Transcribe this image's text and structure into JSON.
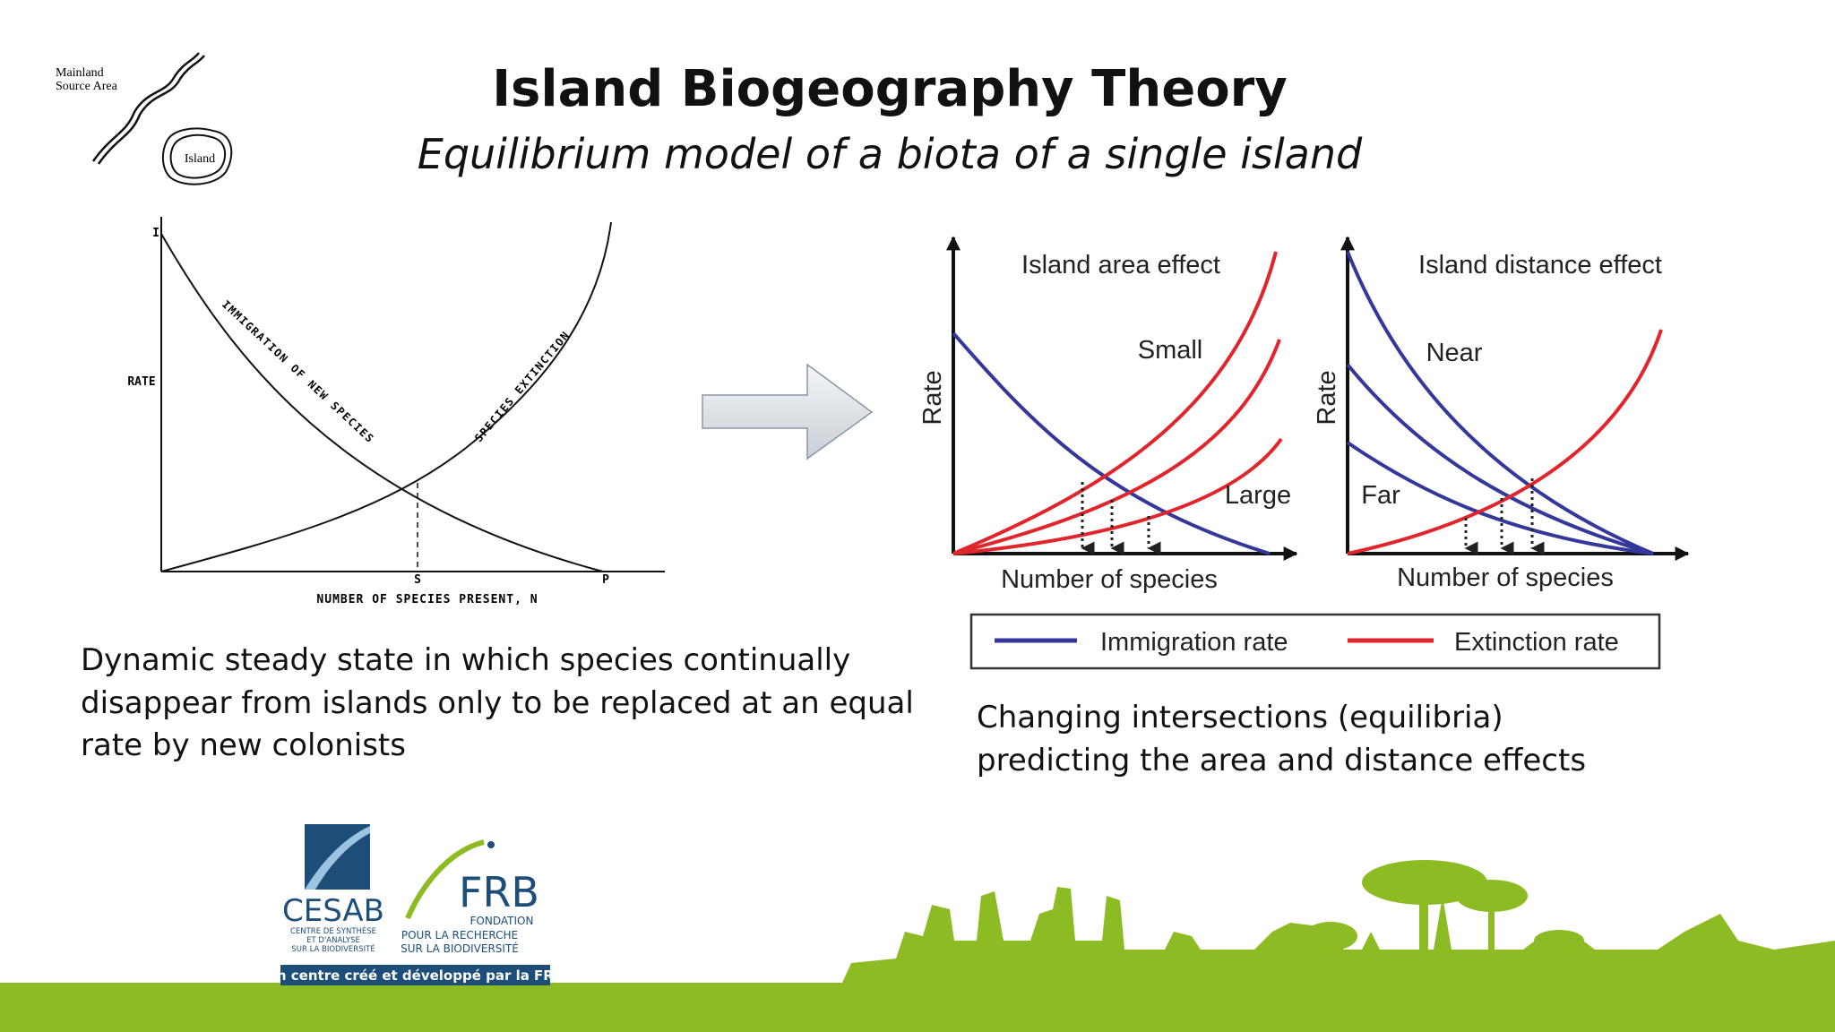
{
  "title": "Island Biogeography Theory",
  "subtitle": "Equilibrium model of a biota of a single island",
  "inset": {
    "mainland": [
      "Mainland",
      "Source Area"
    ],
    "island": "Island"
  },
  "left_diagram": {
    "y_axis": "RATE",
    "y_top": "I",
    "x_axis": "NUMBER OF SPECIES PRESENT, N",
    "x_s": "S",
    "x_p": "P",
    "immigration": "IMMIGRATION OF NEW SPECIES",
    "extinction": "SPECIES EXTINCTION"
  },
  "left_text": [
    "Dynamic steady state in which species continually",
    "disappear from islands only to be replaced at an equal",
    "rate by new colonists"
  ],
  "area_panel": {
    "title": "Island area effect",
    "y_axis": "Rate",
    "x_axis": "Number of species",
    "labels": [
      "Small",
      "Large"
    ]
  },
  "distance_panel": {
    "title": "Island distance effect",
    "y_axis": "Rate",
    "x_axis": "Number of species",
    "labels": [
      "Near",
      "Far"
    ]
  },
  "legend": [
    "Immigration rate",
    "Extinction rate"
  ],
  "right_text": [
    "Changing intersections (equilibria)",
    "predicting the area and distance effects"
  ],
  "logos": {
    "cesab": "CESAB",
    "cesab_sub": [
      "CENTRE DE SYNTHÈSE",
      "ET D'ANALYSE",
      "SUR LA BIODIVERSITÉ"
    ],
    "frb": "FRB",
    "frb_sub": [
      "FONDATION",
      "POUR LA RECHERCHE",
      "SUR LA BIODIVERSITÉ"
    ],
    "banner": "Un centre créé et développé par la FRB"
  }
}
